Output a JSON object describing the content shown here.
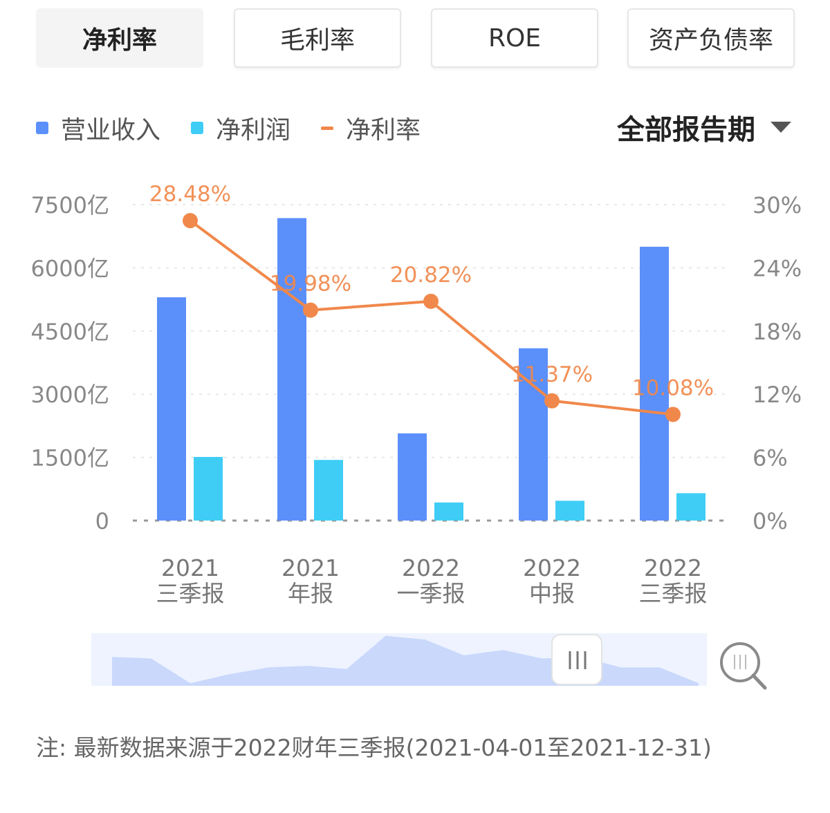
{
  "tabs": [
    {
      "label": "净利率",
      "active": true
    },
    {
      "label": "毛利率",
      "active": false
    },
    {
      "label": "ROE",
      "active": false
    },
    {
      "label": "资产负债率",
      "active": false
    }
  ],
  "legend": {
    "revenue": "营业收入",
    "net_profit": "净利润",
    "net_margin": "净利率"
  },
  "period_selector": {
    "label": "全部报告期",
    "icon": "caret-down-icon"
  },
  "colors": {
    "revenue": "#5b8ff9",
    "net_profit": "#3fcdf5",
    "net_margin": "#f0884b"
  },
  "chart_data": {
    "type": "bar",
    "categories": [
      [
        "2021",
        "三季报"
      ],
      [
        "2021",
        "年报"
      ],
      [
        "2022",
        "一季报"
      ],
      [
        "2022",
        "中报"
      ],
      [
        "2022",
        "三季报"
      ]
    ],
    "series": [
      {
        "name": "营业收入",
        "type": "bar",
        "axis": "left",
        "values": [
          5300,
          7180,
          2070,
          4090,
          6500
        ]
      },
      {
        "name": "净利润",
        "type": "bar",
        "axis": "left",
        "values": [
          1510,
          1440,
          430,
          470,
          650
        ]
      },
      {
        "name": "净利率",
        "type": "line",
        "axis": "right",
        "values": [
          28.48,
          19.98,
          20.82,
          11.37,
          10.08
        ]
      }
    ],
    "data_labels": [
      "28.48%",
      "19.98%",
      "20.82%",
      "11.37%",
      "10.08%"
    ],
    "left_axis": {
      "ticks": [
        "0",
        "1500亿",
        "3000亿",
        "4500亿",
        "6000亿",
        "7500亿"
      ],
      "range": [
        0,
        7500
      ]
    },
    "right_axis": {
      "ticks": [
        "0%",
        "6%",
        "12%",
        "18%",
        "24%",
        "30%"
      ],
      "range": [
        0,
        30
      ]
    },
    "grid": true,
    "legend_position": "top-left"
  },
  "overview": {
    "handle_icon": "drag-handle-icon",
    "zoom_icon": "zoom-icon",
    "profile": [
      0.55,
      0.52,
      0.05,
      0.22,
      0.35,
      0.38,
      0.32,
      0.95,
      0.88,
      0.58,
      0.68,
      0.52,
      0.55,
      0.35,
      0.35,
      0.05
    ]
  },
  "footnote": "注: 最新数据来源于2022财年三季报(2021-04-01至2021-12-31)"
}
